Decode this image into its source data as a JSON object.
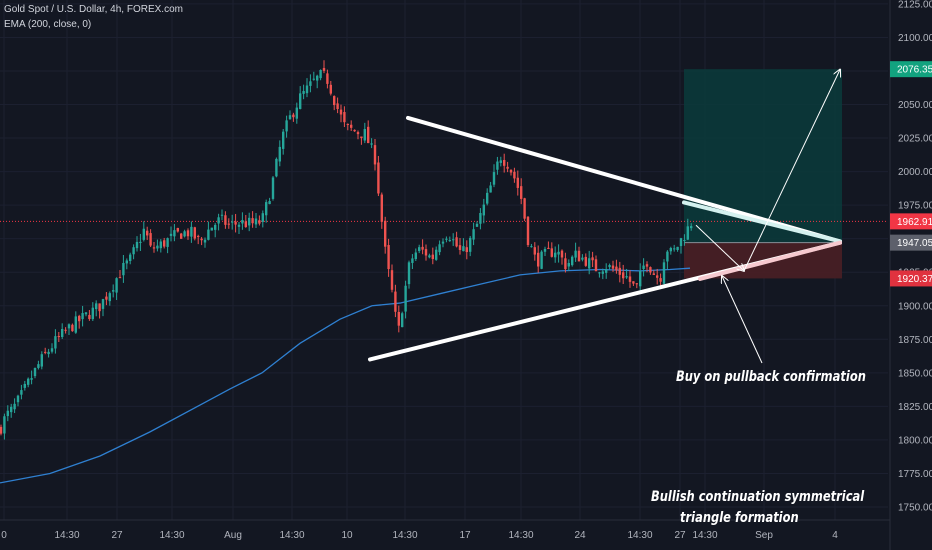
{
  "header": {
    "symbol_line": "Gold Spot / U.S. Dollar, 4h, FOREX.com",
    "indicator_line": "EMA (200, close, 0)"
  },
  "annotations": {
    "buy_note": "Buy on pullback confirmation",
    "pattern_note_line1": "Bullish continuation symmetrical",
    "pattern_note_line2": "triangle formation"
  },
  "colors": {
    "background": "#131722",
    "up_candle": "#26a69a",
    "down_candle": "#ef5350",
    "ema_line": "#2f80d1",
    "trendline": "#ffffff",
    "target_zone": "#0b3b3b",
    "stop_zone": "#4a1f25",
    "target_tag": "#12a37f",
    "price_tag": "#f23645",
    "stop_tag": "#e0323f",
    "entry_tag": "#5d606b"
  },
  "chart_data": {
    "type": "candlestick",
    "symbol": "Gold Spot / U.S. Dollar",
    "timeframe": "4h",
    "source": "FOREX.com",
    "x_tick_labels": [
      "0",
      "14:30",
      "27",
      "14:30",
      "Aug",
      "14:30",
      "10",
      "14:30",
      "17",
      "14:30",
      "24",
      "14:30",
      "27",
      "14:30",
      "Sep",
      "4"
    ],
    "y_tick_labels": [
      "1750.00",
      "1775.00",
      "1800.00",
      "1825.00",
      "1850.00",
      "1875.00",
      "1900.00",
      "1925.00",
      "1950.00",
      "1975.00",
      "2000.00",
      "2025.00",
      "2050.00",
      "2075.00",
      "2100.00",
      "2125.00"
    ],
    "ylim": [
      1745,
      2125
    ],
    "close_path": [
      [
        0,
        1808
      ],
      [
        6,
        1818
      ],
      [
        12,
        1822
      ],
      [
        20,
        1831
      ],
      [
        28,
        1842
      ],
      [
        40,
        1858
      ],
      [
        55,
        1873
      ],
      [
        70,
        1884
      ],
      [
        85,
        1892
      ],
      [
        100,
        1900
      ],
      [
        110,
        1912
      ],
      [
        120,
        1925
      ],
      [
        130,
        1934
      ],
      [
        140,
        1950
      ],
      [
        145,
        1958
      ],
      [
        150,
        1942
      ],
      [
        160,
        1945
      ],
      [
        170,
        1950
      ],
      [
        180,
        1954
      ],
      [
        190,
        1955
      ],
      [
        200,
        1947
      ],
      [
        210,
        1958
      ],
      [
        220,
        1964
      ],
      [
        230,
        1960
      ],
      [
        240,
        1962
      ],
      [
        255,
        1961
      ],
      [
        262,
        1963
      ],
      [
        268,
        1978
      ],
      [
        275,
        2000
      ],
      [
        282,
        2025
      ],
      [
        290,
        2040
      ],
      [
        300,
        2055
      ],
      [
        308,
        2062
      ],
      [
        315,
        2068
      ],
      [
        322,
        2072
      ],
      [
        328,
        2068
      ],
      [
        336,
        2050
      ],
      [
        345,
        2033
      ],
      [
        355,
        2030
      ],
      [
        365,
        2028
      ],
      [
        375,
        2010
      ],
      [
        380,
        1975
      ],
      [
        386,
        1935
      ],
      [
        392,
        1910
      ],
      [
        398,
        1878
      ],
      [
        403,
        1903
      ],
      [
        410,
        1933
      ],
      [
        418,
        1942
      ],
      [
        425,
        1940
      ],
      [
        432,
        1935
      ],
      [
        440,
        1950
      ],
      [
        448,
        1955
      ],
      [
        456,
        1945
      ],
      [
        462,
        1938
      ],
      [
        470,
        1948
      ],
      [
        478,
        1962
      ],
      [
        486,
        1978
      ],
      [
        494,
        1996
      ],
      [
        500,
        2012
      ],
      [
        508,
        2006
      ],
      [
        516,
        1993
      ],
      [
        522,
        1978
      ],
      [
        528,
        1950
      ],
      [
        536,
        1933
      ],
      [
        546,
        1938
      ],
      [
        556,
        1942
      ],
      [
        566,
        1930
      ],
      [
        576,
        1938
      ],
      [
        586,
        1934
      ],
      [
        596,
        1928
      ],
      [
        606,
        1930
      ],
      [
        616,
        1926
      ],
      [
        626,
        1922
      ],
      [
        636,
        1912
      ],
      [
        646,
        1935
      ],
      [
        654,
        1924
      ],
      [
        660,
        1920
      ],
      [
        666,
        1944
      ],
      [
        672,
        1938
      ],
      [
        680,
        1948
      ],
      [
        686,
        1955
      ],
      [
        692,
        1963
      ]
    ],
    "ema_200": [
      [
        0,
        1768
      ],
      [
        50,
        1775
      ],
      [
        100,
        1788
      ],
      [
        150,
        1806
      ],
      [
        200,
        1826
      ],
      [
        230,
        1838
      ],
      [
        262,
        1850
      ],
      [
        300,
        1872
      ],
      [
        340,
        1890
      ],
      [
        372,
        1900
      ],
      [
        400,
        1902
      ],
      [
        440,
        1909
      ],
      [
        480,
        1916
      ],
      [
        520,
        1923
      ],
      [
        560,
        1926
      ],
      [
        600,
        1927
      ],
      [
        640,
        1926
      ],
      [
        670,
        1927
      ],
      [
        690,
        1928
      ]
    ],
    "trendline_upper": [
      [
        408,
        2040
      ],
      [
        840,
        1948
      ]
    ],
    "trendline_lower": [
      [
        370,
        1860
      ],
      [
        840,
        1947
      ]
    ],
    "current_price": 1962.91,
    "current_price_label": "1962.91",
    "trade_setup": {
      "entry": 1947.05,
      "entry_label": "1947.05",
      "target": 2076.35,
      "target_label": "2076.35",
      "stop": 1920.37,
      "stop_label": "1920.37"
    }
  }
}
